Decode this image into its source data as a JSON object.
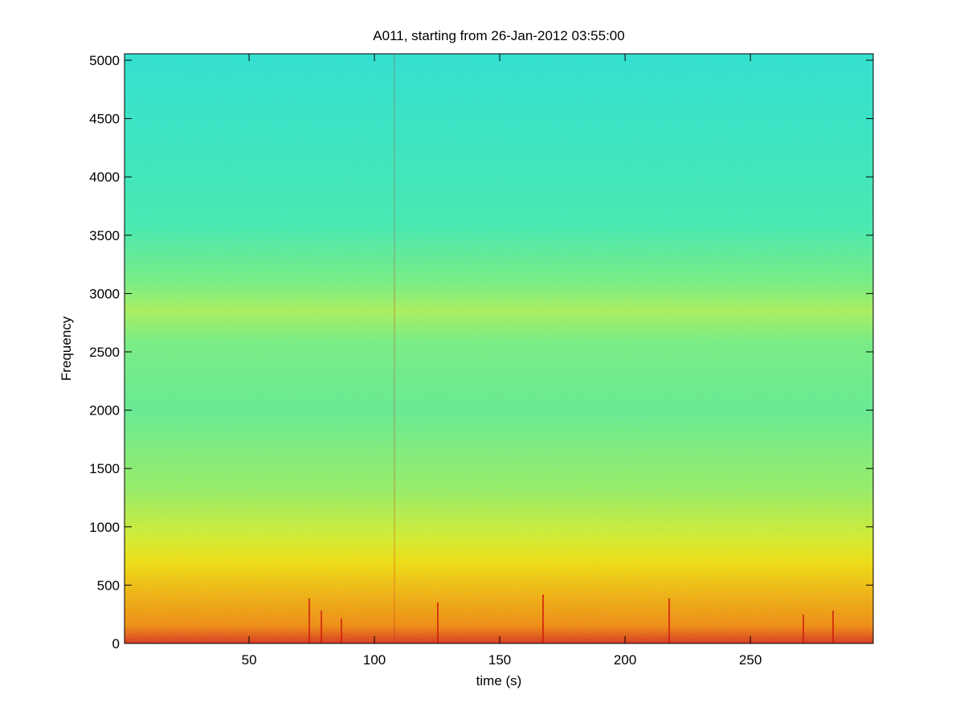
{
  "chart_data": {
    "type": "spectrogram",
    "title": "A011, starting from 26-Jan-2012 03:55:00",
    "x_label": "time (s)",
    "y_label": "Frequency",
    "xlim": [
      0.3,
      299
    ],
    "xticks": [
      50,
      100,
      150,
      200,
      250
    ],
    "ylim": [
      0,
      5055
    ],
    "yticks": [
      0,
      500,
      1000,
      1500,
      2000,
      2500,
      3000,
      3500,
      4000,
      4500,
      5000
    ]
  }
}
